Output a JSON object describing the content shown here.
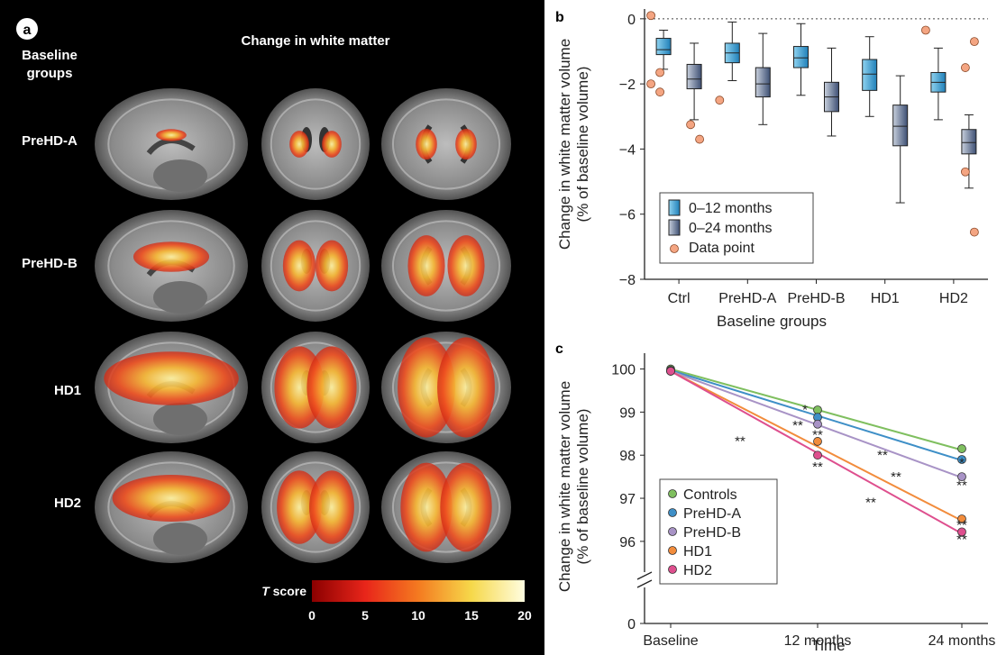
{
  "panel_a": {
    "letter": "a",
    "title": "Change in white matter",
    "group_header_line1": "Baseline",
    "group_header_line2": "groups",
    "rows": [
      {
        "label": "PreHD-A"
      },
      {
        "label": "PreHD-B"
      },
      {
        "label": "HD1"
      },
      {
        "label": "HD2"
      }
    ],
    "colorbar": {
      "label_italic": "T",
      "label_rest": " score",
      "ticks": [
        "0",
        "5",
        "10",
        "15",
        "20"
      ],
      "colors": [
        "#8b0000",
        "#e8251a",
        "#f47a20",
        "#f6d84a",
        "#fffde0"
      ]
    }
  },
  "chart_data": [
    {
      "id": "b",
      "letter": "b",
      "type": "box",
      "xlabel": "Baseline groups",
      "ylabel_line1": "Change in white matter volume",
      "ylabel_line2": "(% of baseline volume)",
      "categories": [
        "Ctrl",
        "PreHD-A",
        "PreHD-B",
        "HD1",
        "HD2"
      ],
      "yticks": [
        "0",
        "−2",
        "−4",
        "−6",
        "−8"
      ],
      "ytick_values": [
        0,
        -2,
        -4,
        -6,
        -8
      ],
      "ylim": [
        -8,
        0.3
      ],
      "reference_line": 0,
      "series": [
        {
          "name": "0–12 months",
          "color_light": "#8fd3f0",
          "color_dark": "#1f7fb8",
          "boxes": [
            {
              "whisker_high": -0.35,
              "q3": -0.6,
              "median": -0.95,
              "q1": -1.1,
              "whisker_low": -1.55
            },
            {
              "whisker_high": -0.1,
              "q3": -0.75,
              "median": -1.05,
              "q1": -1.35,
              "whisker_low": -1.9
            },
            {
              "whisker_high": -0.15,
              "q3": -0.85,
              "median": -1.2,
              "q1": -1.5,
              "whisker_low": -2.35
            },
            {
              "whisker_high": -0.55,
              "q3": -1.25,
              "median": -1.7,
              "q1": -2.2,
              "whisker_low": -3.0
            },
            {
              "whisker_high": -0.9,
              "q3": -1.65,
              "median": -1.95,
              "q1": -2.25,
              "whisker_low": -3.1
            }
          ],
          "outliers": [
            [
              0.1,
              -1.65,
              -2.0,
              -2.25
            ],
            [
              -2.5
            ],
            [],
            [],
            [
              -0.35
            ]
          ]
        },
        {
          "name": "0–24 months",
          "color_light": "#c8d0dd",
          "color_dark": "#3d4f73",
          "boxes": [
            {
              "whisker_high": -0.75,
              "q3": -1.4,
              "median": -1.85,
              "q1": -2.15,
              "whisker_low": -3.1
            },
            {
              "whisker_high": -0.45,
              "q3": -1.5,
              "median": -2.0,
              "q1": -2.4,
              "whisker_low": -3.25
            },
            {
              "whisker_high": -0.9,
              "q3": -1.95,
              "median": -2.4,
              "q1": -2.85,
              "whisker_low": -3.6
            },
            {
              "whisker_high": -1.75,
              "q3": -2.65,
              "median": -3.3,
              "q1": -3.9,
              "whisker_low": -5.65
            },
            {
              "whisker_high": -2.95,
              "q3": -3.4,
              "median": -3.8,
              "q1": -4.15,
              "whisker_low": -5.2
            }
          ],
          "outliers": [
            [
              -3.25,
              -3.7
            ],
            [],
            [],
            [],
            [
              -4.7,
              -0.7,
              -1.5,
              -6.55
            ]
          ]
        }
      ],
      "legend": [
        "0–12 months",
        "0–24 months",
        "Data point"
      ],
      "legend_position": "bottom-left",
      "data_point_color": "#f4a582"
    },
    {
      "id": "c",
      "letter": "c",
      "type": "line",
      "xlabel": "Time",
      "ylabel_line1": "Change in white matter volume",
      "ylabel_line2": "(% of baseline volume)",
      "x": [
        "Baseline",
        "12 months",
        "24 months"
      ],
      "yticks": [
        "100",
        "99",
        "98",
        "97",
        "96",
        "0"
      ],
      "ytick_values": [
        100,
        99,
        98,
        97,
        96
      ],
      "ylim": [
        95.6,
        100.2
      ],
      "axis_break": true,
      "series": [
        {
          "name": "Controls",
          "color": "#7fbf5f",
          "values": [
            100,
            99.05,
            98.15
          ],
          "fit_end": 98.12,
          "annotations": [
            "",
            "",
            ""
          ]
        },
        {
          "name": "PreHD-A",
          "color": "#3e8fc7",
          "values": [
            99.97,
            98.88,
            97.9
          ],
          "fit_end": 97.88,
          "annotations": [
            "",
            "*",
            "*"
          ]
        },
        {
          "name": "PreHD-B",
          "color": "#a893c6",
          "values": [
            99.95,
            98.72,
            97.5
          ],
          "fit_end": 97.48,
          "annotations": [
            "",
            "**",
            "**"
          ]
        },
        {
          "name": "HD1",
          "color": "#f28c3c",
          "values": [
            99.95,
            98.32,
            96.52
          ],
          "fit_end": 96.48,
          "annotations": [
            "",
            "**",
            "**"
          ]
        },
        {
          "name": "HD2",
          "color": "#de4f8e",
          "values": [
            99.95,
            98.0,
            96.22
          ],
          "fit_end": 96.18,
          "annotations": [
            "",
            "**",
            "**"
          ]
        }
      ],
      "extra_annotations": [
        "**",
        "**",
        "**",
        "**"
      ],
      "legend_position": "bottom-left"
    }
  ]
}
